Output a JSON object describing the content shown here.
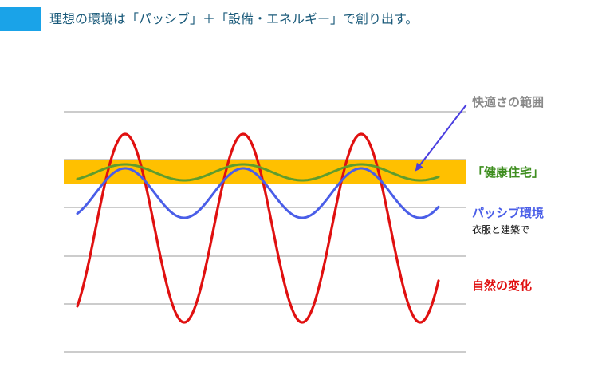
{
  "heading": {
    "text": "理想の環境は「パッシブ」＋「設備・エネルギー」で創り出す。"
  },
  "diagram": {
    "labels": {
      "comfort_range": "快適さの範囲",
      "healthy_home": "「健康住宅」",
      "passive_env": "パッシブ環境",
      "passive_env_sub": "衣服と建築で",
      "nature_change": "自然の変化"
    },
    "colors": {
      "heading_bar": "#1aa3e8",
      "comfort_band": "#ffc000",
      "healthy_wave": "#5f9d2d",
      "passive_wave": "#4a5ee8",
      "nature_wave": "#e01010",
      "arrow": "#4a3ee0",
      "grid": "#9a9a9a"
    },
    "waves": [
      {
        "key": "nature",
        "cycles": 3,
        "relative_amplitude": 1.0
      },
      {
        "key": "passive",
        "cycles": 3,
        "relative_amplitude": 0.3
      },
      {
        "key": "healthy",
        "cycles": 3,
        "relative_amplitude": 0.07
      }
    ]
  }
}
